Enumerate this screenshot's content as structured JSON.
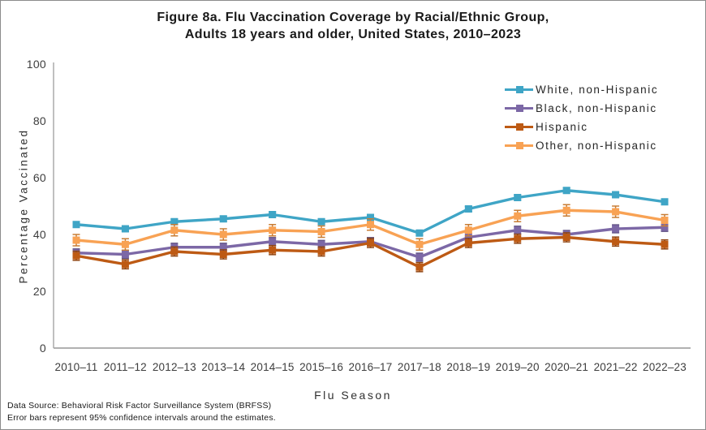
{
  "figure": {
    "title_line1": "Figure 8a. Flu Vaccination Coverage by Racial/Ethnic Group,",
    "title_line2": "Adults 18 years and older, United States, 2010–2023"
  },
  "footer": {
    "line1": "Data Source: Behavioral Risk Factor Surveillance System (BRFSS)",
    "line2": "Error bars represent 95% confidence intervals around the estimates."
  },
  "chart_data": {
    "type": "line",
    "title": "Figure 8a. Flu Vaccination Coverage by Racial/Ethnic Group, Adults 18 years and older, United States, 2010–2023",
    "xlabel": "Flu Season",
    "ylabel": "Percentage Vaccinated",
    "ylim": [
      0,
      100
    ],
    "yticks": [
      0,
      20,
      40,
      60,
      80,
      100
    ],
    "grid": false,
    "legend_position": "top-right",
    "error_bars_note": "95% confidence intervals",
    "axis_color": "#a6a6a6",
    "tick_label_color": "#3d3d3d",
    "categories": [
      "2010–11",
      "2011–12",
      "2012–13",
      "2013–14",
      "2014–15",
      "2015–16",
      "2016–17",
      "2017–18",
      "2018–19",
      "2019–20",
      "2020–21",
      "2021–22",
      "2022–23"
    ],
    "series": [
      {
        "name": "White, non-Hispanic",
        "color": "#3FA5C6",
        "error_color": "#2e7f9b",
        "ci_halfwidth": 0.9,
        "values": [
          43.5,
          42,
          44.5,
          45.5,
          47,
          44.5,
          46,
          40.5,
          49,
          53,
          55.5,
          54,
          51.5
        ]
      },
      {
        "name": "Black, non-Hispanic",
        "color": "#7C68A6",
        "error_color": "#5d4e80",
        "ci_halfwidth": 1.4,
        "values": [
          33.5,
          33,
          35.5,
          35.5,
          37.5,
          36.5,
          37.5,
          32,
          39,
          41.5,
          40,
          42,
          42.5
        ]
      },
      {
        "name": "Hispanic",
        "color": "#BD5A14",
        "error_color": "#8f430f",
        "ci_halfwidth": 1.6,
        "values": [
          32.5,
          29.5,
          34,
          33,
          34.5,
          34,
          37,
          28.5,
          37,
          38.5,
          39,
          37.5,
          36.5
        ]
      },
      {
        "name": "Other, non-Hispanic",
        "color": "#F8A254",
        "error_color": "#c87d35",
        "ci_halfwidth": 2.0,
        "values": [
          38,
          36.5,
          41.5,
          40,
          41.5,
          41,
          43.5,
          36.5,
          41.5,
          46.5,
          48.5,
          48,
          45
        ]
      }
    ]
  }
}
